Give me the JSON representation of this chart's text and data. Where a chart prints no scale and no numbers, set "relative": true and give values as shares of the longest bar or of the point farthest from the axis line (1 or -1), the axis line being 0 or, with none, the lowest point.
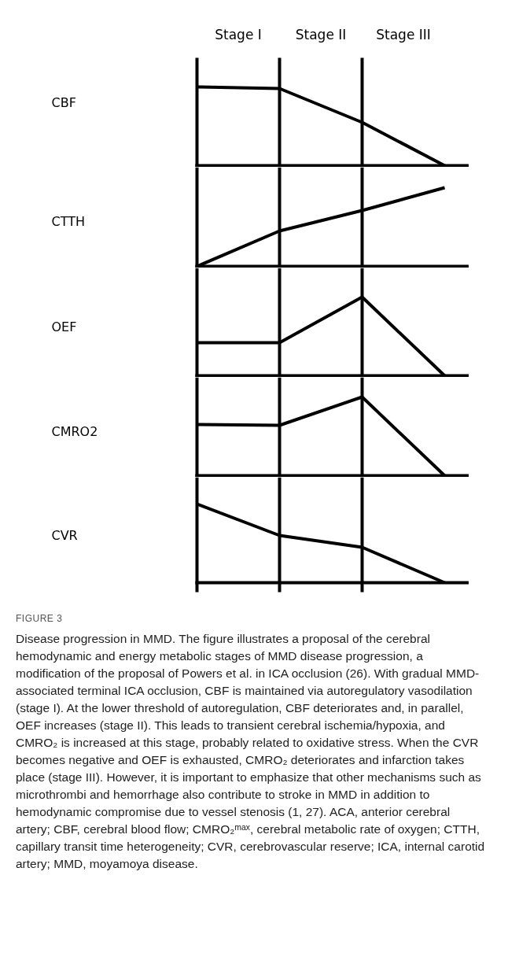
{
  "chart_data": [
    {
      "type": "line",
      "ylabel": "CBF",
      "relative": true,
      "categories": [
        null,
        null,
        null,
        null
      ],
      "annotations": [
        "Stage I",
        "Stage II",
        "Stage III"
      ],
      "series": [
        {
          "color": "#000000",
          "values": [
            1,
            0.98,
            0.55,
            0
          ]
        }
      ]
    },
    {
      "type": "line",
      "ylabel": "CTTH",
      "relative": true,
      "categories": [
        null,
        null,
        null,
        null
      ],
      "series": [
        {
          "color": "#000000",
          "values": [
            0,
            0.45,
            0.71,
            1
          ]
        }
      ]
    },
    {
      "type": "line",
      "ylabel": "OEF",
      "relative": true,
      "categories": [
        null,
        null,
        null,
        null
      ],
      "series": [
        {
          "color": "#000000",
          "values": [
            0.42,
            0.42,
            1,
            0
          ]
        }
      ]
    },
    {
      "type": "line",
      "ylabel": "CMRO2",
      "relative": true,
      "categories": [
        null,
        null,
        null,
        null
      ],
      "series": [
        {
          "color": "#000000",
          "values": [
            0.65,
            0.64,
            1,
            0
          ]
        }
      ]
    },
    {
      "type": "line",
      "ylabel": "CVR",
      "relative": true,
      "categories": [
        null,
        null,
        null,
        null
      ],
      "series": [
        {
          "color": "#000000",
          "values": [
            1,
            0.6,
            0.45,
            0
          ]
        }
      ],
      "annotations": [
        "FIGURE 3",
        "Disease progression in MMD. The figure illustrates a proposal of the cerebral hemodynamic and energy metabolic stages of MMD disease progression, a modification of the proposal of Powers et al. in ICA occlusion (26). With gradual MMD-associated terminal ICA occlusion, CBF is maintained via autoregulatory vasodilation (stage I). At the lower threshold of autoregulation, CBF deteriorates and, in parallel, OEF increases (stage II). This leads to transient cerebral ischemia/hypoxia, and CMRO₂ is increased at this stage, probably related to oxidative stress. When the CVR becomes negative and OEF is exhausted, CMRO₂ deteriorates and infarction takes place (stage III). However, it is important to emphasize that other mechanisms such as microthrombi and hemorrhage also contribute to stroke in MMD in addition to hemodynamic compromise due to vessel stenosis (1, 27). ACA, anterior cerebral artery; CBF, cerebral blood flow; CMRO₂ᵐᵃˣ, cerebral metabolic rate of oxygen; CTTH, capillary transit time heterogeneity; CVR, cerebrovascular reserve; ICA, internal carotid artery; MMD, moyamoya disease."
      ]
    }
  ]
}
